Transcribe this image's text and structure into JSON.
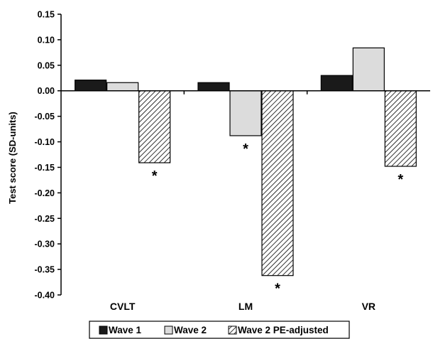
{
  "chart_data": {
    "type": "bar",
    "ylabel": "Test score (SD-units)",
    "xlabel": "",
    "title": "",
    "ylim": [
      -0.4,
      0.15
    ],
    "yticks": [
      "0.15",
      "0.10",
      "0.05",
      "0.00",
      "-0.05",
      "-0.10",
      "-0.15",
      "-0.20",
      "-0.25",
      "-0.30",
      "-0.35",
      "-0.40"
    ],
    "categories": [
      "CVLT",
      "LM",
      "VR"
    ],
    "series": [
      {
        "name": "Wave 1",
        "values": [
          0.021,
          0.016,
          0.03
        ],
        "fill": "#1a1a1a",
        "pattern": "solid"
      },
      {
        "name": "Wave 2",
        "values": [
          0.016,
          -0.088,
          0.084
        ],
        "fill": "#dcdcdc",
        "pattern": "solid"
      },
      {
        "name": "Wave 2 PE-adjusted",
        "values": [
          -0.141,
          -0.362,
          -0.148
        ],
        "fill": "#ffffff",
        "pattern": "diagonal-hatch"
      }
    ],
    "annotations": [
      {
        "text": "*",
        "category": "CVLT",
        "series": "Wave 2 PE-adjusted"
      },
      {
        "text": "*",
        "category": "LM",
        "series": "Wave 2"
      },
      {
        "text": "*",
        "category": "LM",
        "series": "Wave 2 PE-adjusted"
      },
      {
        "text": "*",
        "category": "VR",
        "series": "Wave 2 PE-adjusted"
      }
    ],
    "legend_position": "bottom",
    "grid": false
  }
}
